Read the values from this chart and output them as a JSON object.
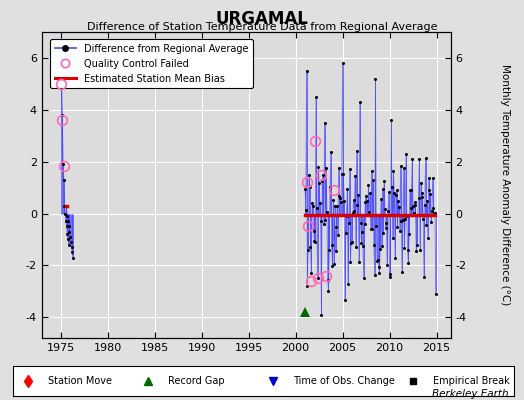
{
  "title": "URGAMAL",
  "subtitle": "Difference of Station Temperature Data from Regional Average",
  "ylabel": "Monthly Temperature Anomaly Difference (°C)",
  "ylim": [
    -4.8,
    7.0
  ],
  "xlim": [
    1973.0,
    2016.5
  ],
  "xticks": [
    1975,
    1980,
    1985,
    1990,
    1995,
    2000,
    2005,
    2010,
    2015
  ],
  "yticks": [
    -4,
    -2,
    0,
    2,
    4,
    6
  ],
  "background_color": "#e0e0e0",
  "plot_background": "#dcdcdc",
  "grid_color": "#ffffff",
  "line_color": "#4444ff",
  "bias_color": "#dd0000",
  "qc_color": "#ff69b4",
  "watermark": "Berkeley Earth",
  "bias_x_start": 2001.0,
  "bias_x_end": 2014.8,
  "bias_y": -0.05,
  "record_gap_x": 2001.0,
  "record_gap_y": -3.8,
  "figsize": [
    5.24,
    4.0
  ],
  "dpi": 100,
  "early_data_seed": 10,
  "late_data_seed": 20
}
